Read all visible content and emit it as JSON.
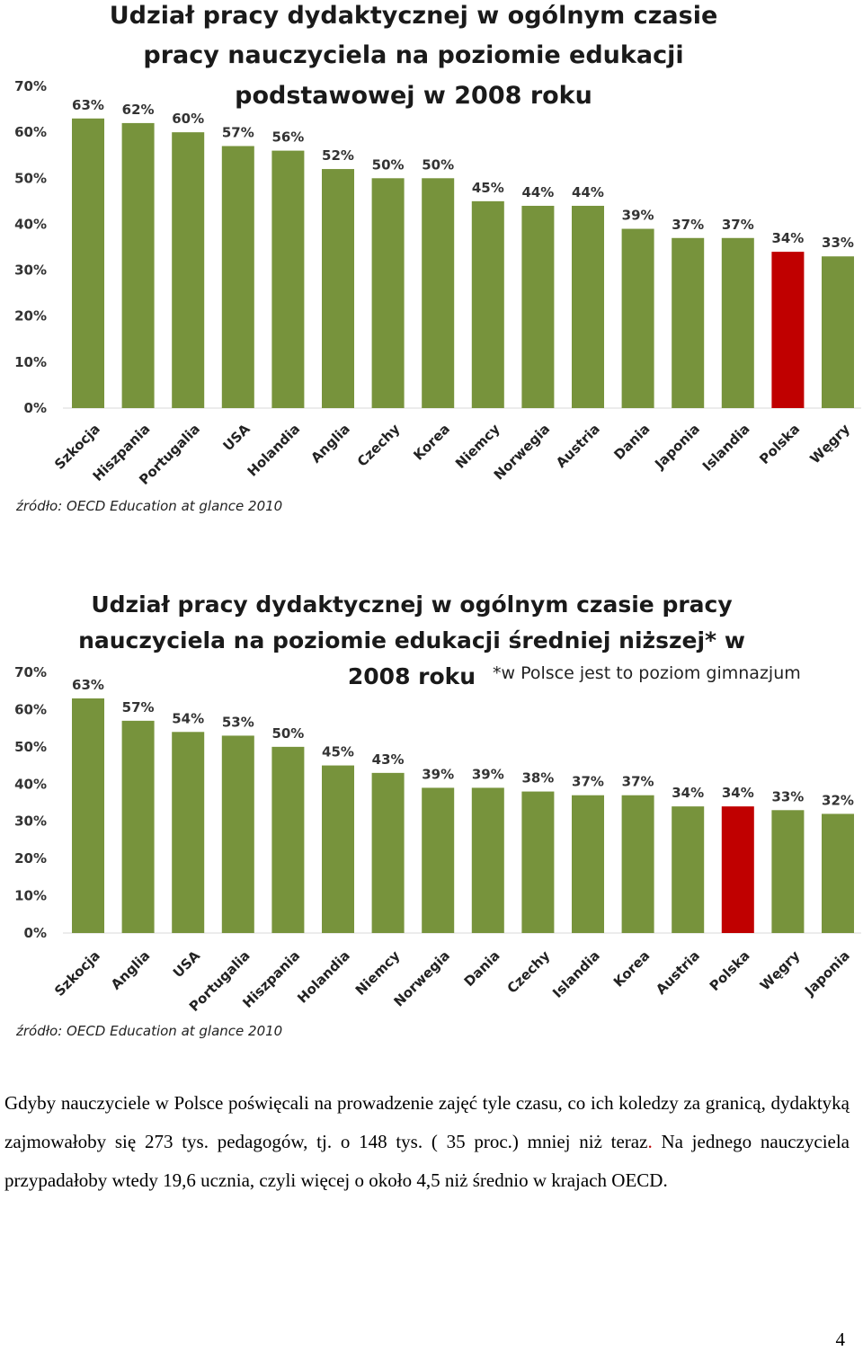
{
  "chart_data": [
    {
      "type": "bar",
      "title_lines": [
        "Udział pracy dydaktycznej w ogólnym czasie",
        "pracy nauczyciela na poziomie edukacji",
        "podstawowej w 2008 roku"
      ],
      "title_note": "",
      "categories": [
        "Szkocja",
        "Hiszpania",
        "Portugalia",
        "USA",
        "Holandia",
        "Anglia",
        "Czechy",
        "Korea",
        "Niemcy",
        "Norwegia",
        "Austria",
        "Dania",
        "Japonia",
        "Islandia",
        "Polska",
        "Węgry"
      ],
      "values": [
        63,
        62,
        60,
        57,
        56,
        52,
        50,
        50,
        45,
        44,
        44,
        39,
        37,
        37,
        34,
        33
      ],
      "value_labels": [
        "63%",
        "62%",
        "60%",
        "57%",
        "56%",
        "52%",
        "50%",
        "50%",
        "45%",
        "44%",
        "44%",
        "39%",
        "37%",
        "37%",
        "34%",
        "33%"
      ],
      "highlight": "Polska",
      "colors": {
        "bar": "#77933c",
        "highlight": "#c00000"
      },
      "yticks": [
        "0%",
        "10%",
        "20%",
        "30%",
        "40%",
        "50%",
        "60%",
        "70%"
      ],
      "ylim": [
        0,
        70
      ],
      "grid": false,
      "source": "źródło: OECD Education at glance 2010"
    },
    {
      "type": "bar",
      "title_lines": [
        "Udział pracy dydaktycznej w ogólnym czasie pracy",
        "nauczyciela na poziomie edukacji średniej niższej* w",
        "2008 roku"
      ],
      "title_note": "*w Polsce jest to poziom gimnazjum",
      "categories": [
        "Szkocja",
        "Anglia",
        "USA",
        "Portugalia",
        "Hiszpania",
        "Holandia",
        "Niemcy",
        "Norwegia",
        "Dania",
        "Czechy",
        "Islandia",
        "Korea",
        "Austria",
        "Polska",
        "Węgry",
        "Japonia"
      ],
      "values": [
        63,
        57,
        54,
        53,
        50,
        45,
        43,
        39,
        39,
        38,
        37,
        37,
        34,
        34,
        33,
        32
      ],
      "value_labels": [
        "63%",
        "57%",
        "54%",
        "53%",
        "50%",
        "45%",
        "43%",
        "39%",
        "39%",
        "38%",
        "37%",
        "37%",
        "34%",
        "34%",
        "33%",
        "32%"
      ],
      "highlight": "Polska",
      "colors": {
        "bar": "#77933c",
        "highlight": "#c00000"
      },
      "yticks": [
        "0%",
        "10%",
        "20%",
        "30%",
        "40%",
        "50%",
        "60%",
        "70%"
      ],
      "ylim": [
        0,
        70
      ],
      "grid": false,
      "source": "źródło: OECD Education at glance 2010"
    }
  ],
  "text": {
    "paragraph_main": "Gdyby nauczyciele w Polsce poświęcali na prowadzenie zajęć tyle czasu, co ich koledzy za granicą, dydaktyką zajmowałoby się 273 tys. pedagogów, tj. o 148 tys. ( 35 proc.) mniej niż teraz",
    "paragraph_dot": ".",
    "paragraph_rest": " Na jednego nauczyciela przypadałoby wtedy 19,6 ucznia, czyli więcej o około 4,5 niż średnio w krajach OECD.",
    "page_number": "4"
  }
}
